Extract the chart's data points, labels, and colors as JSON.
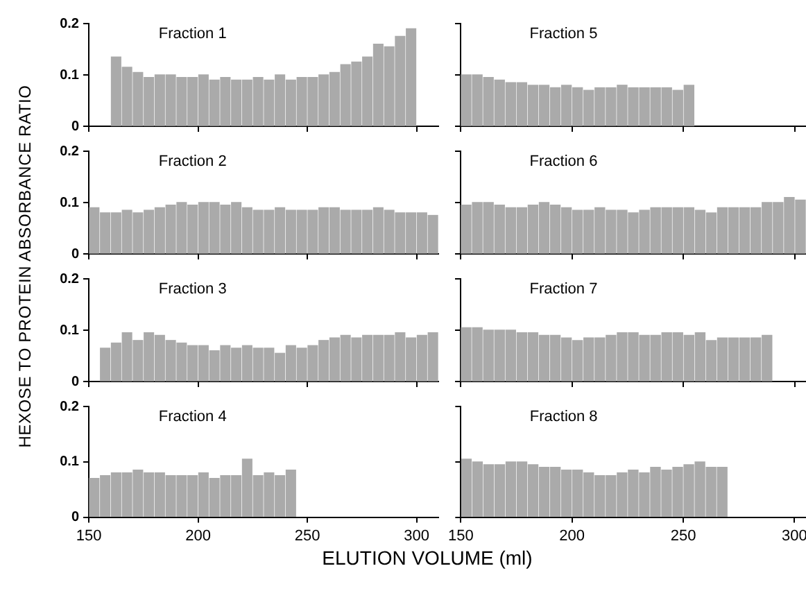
{
  "chart_data": [
    {
      "type": "histogram",
      "title": "Fraction 1",
      "ylabel": "HEXOSE TO PROTEIN ABSORBANCE RATIO",
      "color": "#aaaaaa",
      "bins": [
        160,
        165,
        170,
        175,
        180,
        185,
        190,
        195,
        200,
        205,
        210,
        215,
        220,
        225,
        230,
        235,
        240,
        245,
        250,
        255,
        260,
        265,
        270,
        275,
        280,
        285,
        290,
        295,
        300
      ],
      "values": [
        0.135,
        0.115,
        0.105,
        0.095,
        0.1,
        0.1,
        0.095,
        0.095,
        0.1,
        0.09,
        0.095,
        0.09,
        0.09,
        0.095,
        0.09,
        0.1,
        0.09,
        0.095,
        0.095,
        0.1,
        0.105,
        0.12,
        0.125,
        0.135,
        0.16,
        0.155,
        0.175,
        0.19
      ],
      "xlim": [
        150,
        310
      ],
      "xticks": [
        150,
        200,
        250,
        300
      ],
      "ylim": [
        0,
        0.2
      ],
      "yticks": [
        0,
        0.1,
        0.2
      ],
      "tick_labels": "y"
    },
    {
      "type": "histogram",
      "title": "Fraction 5",
      "color": "#aaaaaa",
      "bins": [
        150,
        155,
        160,
        165,
        170,
        175,
        180,
        185,
        190,
        195,
        200,
        205,
        210,
        215,
        220,
        225,
        230,
        235,
        240,
        245,
        250,
        255
      ],
      "values": [
        0.1,
        0.1,
        0.095,
        0.09,
        0.085,
        0.085,
        0.08,
        0.08,
        0.075,
        0.08,
        0.075,
        0.07,
        0.075,
        0.075,
        0.08,
        0.075,
        0.075,
        0.075,
        0.075,
        0.07,
        0.08
      ],
      "xlim": [
        150,
        305
      ],
      "xticks": [
        150,
        200,
        250,
        300
      ],
      "ylim": [
        0,
        0.2
      ],
      "yticks": [
        {
          "value": 0,
          "label": null
        },
        {
          "value": 0.1,
          "label": null
        },
        {
          "value": 0.2,
          "label": null
        }
      ],
      "tick_labels": false
    },
    {
      "type": "histogram",
      "title": "Fraction 2",
      "color": "#aaaaaa",
      "bins": [
        150,
        155,
        160,
        165,
        170,
        175,
        180,
        185,
        190,
        195,
        200,
        205,
        210,
        215,
        220,
        225,
        230,
        235,
        240,
        245,
        250,
        255,
        260,
        265,
        270,
        275,
        280,
        285,
        290,
        295,
        300,
        305,
        310
      ],
      "values": [
        0.09,
        0.08,
        0.08,
        0.085,
        0.08,
        0.085,
        0.09,
        0.095,
        0.1,
        0.095,
        0.1,
        0.1,
        0.095,
        0.1,
        0.09,
        0.085,
        0.085,
        0.09,
        0.085,
        0.085,
        0.085,
        0.09,
        0.09,
        0.085,
        0.085,
        0.085,
        0.09,
        0.085,
        0.08,
        0.08,
        0.08,
        0.075
      ],
      "xlim": [
        150,
        310
      ],
      "xticks": [
        150,
        200,
        250,
        300
      ],
      "ylim": [
        0,
        0.2
      ],
      "yticks": [
        0,
        0.1,
        0.2
      ],
      "tick_labels": "y"
    },
    {
      "type": "histogram",
      "title": "Fraction 6",
      "color": "#aaaaaa",
      "bins": [
        150,
        155,
        160,
        165,
        170,
        175,
        180,
        185,
        190,
        195,
        200,
        205,
        210,
        215,
        220,
        225,
        230,
        235,
        240,
        245,
        250,
        255,
        260,
        265,
        270,
        275,
        280,
        285,
        290,
        295,
        300,
        305
      ],
      "values": [
        0.095,
        0.1,
        0.1,
        0.095,
        0.09,
        0.09,
        0.095,
        0.1,
        0.095,
        0.09,
        0.085,
        0.085,
        0.09,
        0.085,
        0.085,
        0.08,
        0.085,
        0.09,
        0.09,
        0.09,
        0.09,
        0.085,
        0.08,
        0.09,
        0.09,
        0.09,
        0.09,
        0.1,
        0.1,
        0.11,
        0.105
      ],
      "xlim": [
        150,
        305
      ],
      "xticks": [
        150,
        200,
        250,
        300
      ],
      "ylim": [
        0,
        0.2
      ],
      "yticks": [
        {
          "value": 0,
          "label": null
        },
        {
          "value": 0.1,
          "label": null
        },
        {
          "value": 0.2,
          "label": null
        }
      ],
      "tick_labels": false
    },
    {
      "type": "histogram",
      "title": "Fraction 3",
      "color": "#aaaaaa",
      "bins": [
        155,
        160,
        165,
        170,
        175,
        180,
        185,
        190,
        195,
        200,
        205,
        210,
        215,
        220,
        225,
        230,
        235,
        240,
        245,
        250,
        255,
        260,
        265,
        270,
        275,
        280,
        285,
        290,
        295,
        300,
        305,
        310
      ],
      "values": [
        0.065,
        0.075,
        0.095,
        0.08,
        0.095,
        0.09,
        0.08,
        0.075,
        0.07,
        0.07,
        0.06,
        0.07,
        0.065,
        0.07,
        0.065,
        0.065,
        0.055,
        0.07,
        0.065,
        0.07,
        0.08,
        0.085,
        0.09,
        0.085,
        0.09,
        0.09,
        0.09,
        0.095,
        0.085,
        0.09,
        0.095
      ],
      "xlim": [
        150,
        310
      ],
      "xticks": [
        150,
        200,
        250,
        300
      ],
      "ylim": [
        0,
        0.2
      ],
      "yticks": [
        0,
        0.1,
        0.2
      ],
      "tick_labels": "y"
    },
    {
      "type": "histogram",
      "title": "Fraction 7",
      "color": "#aaaaaa",
      "bins": [
        150,
        155,
        160,
        165,
        170,
        175,
        180,
        185,
        190,
        195,
        200,
        205,
        210,
        215,
        220,
        225,
        230,
        235,
        240,
        245,
        250,
        255,
        260,
        265,
        270,
        275,
        280,
        285,
        290
      ],
      "values": [
        0.105,
        0.105,
        0.1,
        0.1,
        0.1,
        0.095,
        0.095,
        0.09,
        0.09,
        0.085,
        0.08,
        0.085,
        0.085,
        0.09,
        0.095,
        0.095,
        0.09,
        0.09,
        0.095,
        0.095,
        0.09,
        0.095,
        0.08,
        0.085,
        0.085,
        0.085,
        0.085,
        0.09
      ],
      "xlim": [
        150,
        305
      ],
      "xticks": [
        150,
        200,
        250,
        300
      ],
      "ylim": [
        0,
        0.2
      ],
      "yticks": [
        {
          "value": 0,
          "label": null
        },
        {
          "value": 0.1,
          "label": null
        },
        {
          "value": 0.2,
          "label": null
        }
      ],
      "tick_labels": false
    },
    {
      "type": "histogram",
      "title": "Fraction 4",
      "xlabel": "ELUTION VOLUME (ml)",
      "color": "#aaaaaa",
      "bins": [
        150,
        155,
        160,
        165,
        170,
        175,
        180,
        185,
        190,
        195,
        200,
        205,
        210,
        215,
        220,
        225,
        230,
        235,
        240,
        245
      ],
      "values": [
        0.07,
        0.075,
        0.08,
        0.08,
        0.085,
        0.08,
        0.08,
        0.075,
        0.075,
        0.075,
        0.08,
        0.07,
        0.075,
        0.075,
        0.105,
        0.075,
        0.08,
        0.075,
        0.085
      ],
      "xlim": [
        150,
        310
      ],
      "xticks": [
        150,
        200,
        250,
        300
      ],
      "ylim": [
        0,
        0.2
      ],
      "yticks": [
        0,
        0.1,
        0.2
      ]
    },
    {
      "type": "histogram",
      "title": "Fraction 8",
      "color": "#aaaaaa",
      "bins": [
        150,
        155,
        160,
        165,
        170,
        175,
        180,
        185,
        190,
        195,
        200,
        205,
        210,
        215,
        220,
        225,
        230,
        235,
        240,
        245,
        250,
        255,
        260,
        265,
        270
      ],
      "values": [
        0.105,
        0.1,
        0.095,
        0.095,
        0.1,
        0.1,
        0.095,
        0.09,
        0.09,
        0.085,
        0.085,
        0.08,
        0.075,
        0.075,
        0.08,
        0.085,
        0.08,
        0.09,
        0.085,
        0.09,
        0.095,
        0.1,
        0.09,
        0.09
      ],
      "xlim": [
        150,
        305
      ],
      "xticks": [
        150,
        200,
        250,
        300
      ],
      "ylim": [
        0,
        0.2
      ],
      "yticks": [
        {
          "value": 0,
          "label": null
        },
        {
          "value": 0.1,
          "label": null
        },
        {
          "value": 0.2,
          "label": null
        }
      ],
      "tick_labels": "x"
    }
  ]
}
